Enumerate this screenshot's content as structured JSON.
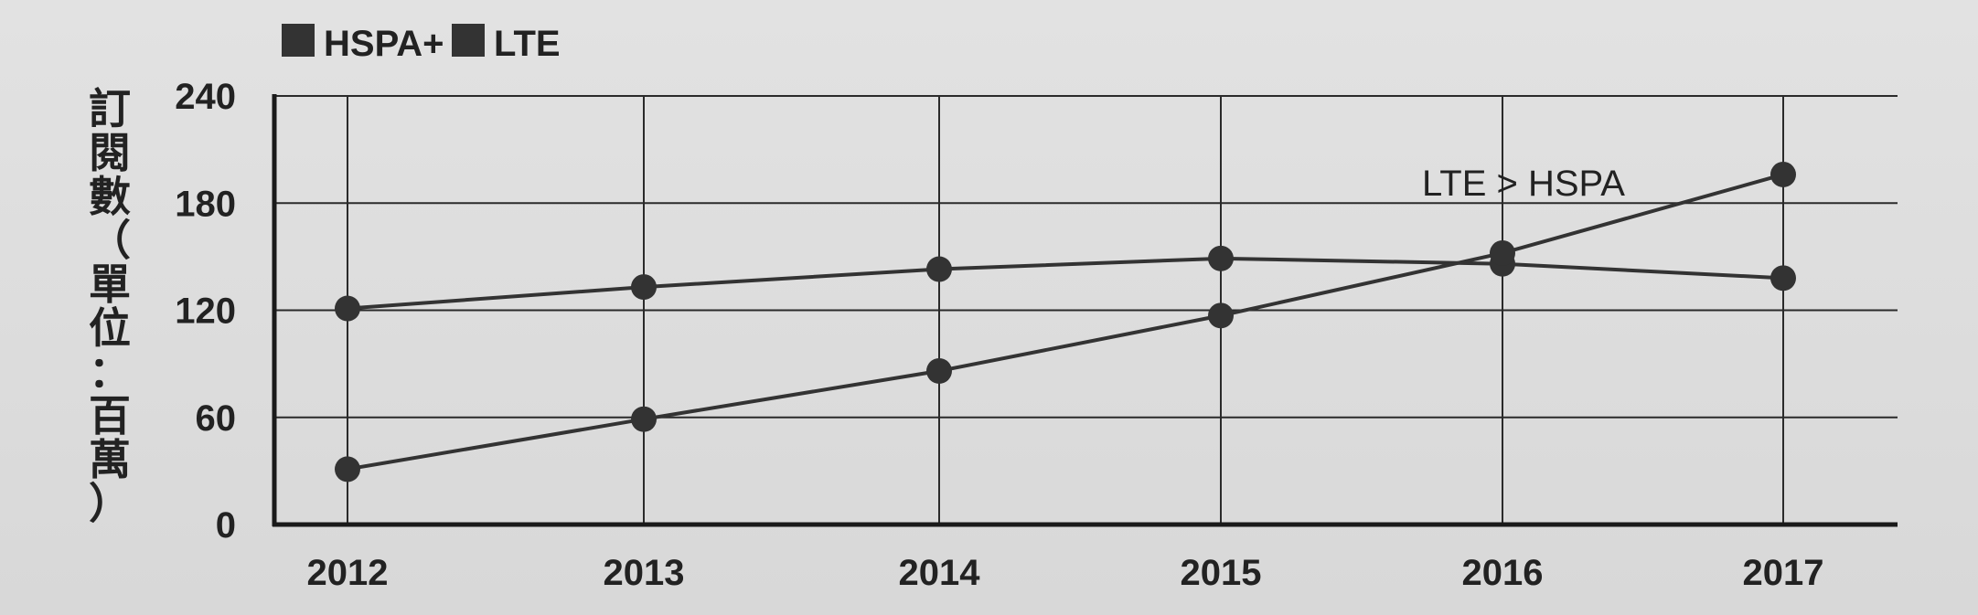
{
  "chart_data": {
    "type": "line",
    "x": [
      "2012",
      "2013",
      "2014",
      "2015",
      "2016",
      "2017"
    ],
    "series": [
      {
        "name": "HSPA+",
        "values": [
          121,
          133,
          143,
          149,
          146,
          138
        ],
        "color": "#333333"
      },
      {
        "name": "LTE",
        "values": [
          31,
          59,
          86,
          117,
          152,
          196
        ],
        "color": "#333333"
      }
    ],
    "title": "",
    "xlabel": "",
    "ylabel": "訂閱數（單位：百萬）",
    "ylim": [
      0,
      240
    ],
    "yticks": [
      "0",
      "60",
      "120",
      "180",
      "240"
    ],
    "grid": true,
    "legend": "top-left",
    "annotation": "LTE > HSPA"
  }
}
